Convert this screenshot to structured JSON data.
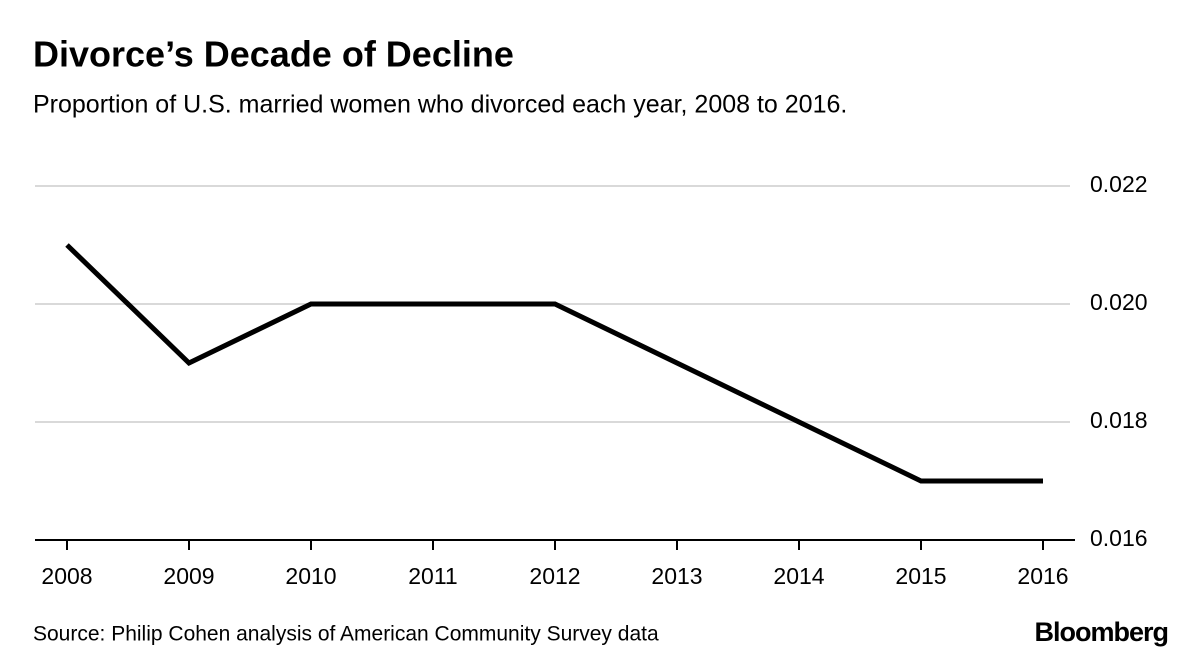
{
  "chart_data": {
    "type": "line",
    "title": "Divorce’s Decade of Decline",
    "subtitle": "Proportion of U.S. married women who divorced each year, 2008 to 2016.",
    "source": "Source: Philip Cohen analysis of American Community Survey data",
    "brand": "Bloomberg",
    "categories": [
      "2008",
      "2009",
      "2010",
      "2011",
      "2012",
      "2013",
      "2014",
      "2015",
      "2016"
    ],
    "values": [
      0.021,
      0.019,
      0.02,
      0.02,
      0.02,
      0.019,
      0.018,
      0.017,
      0.017
    ],
    "color": "#000000",
    "ylim": [
      0.016,
      0.022
    ],
    "yticks": [
      0.016,
      0.018,
      {
        "value": 0.02,
        "label": "0.020"
      },
      0.022
    ],
    "grid": true
  }
}
